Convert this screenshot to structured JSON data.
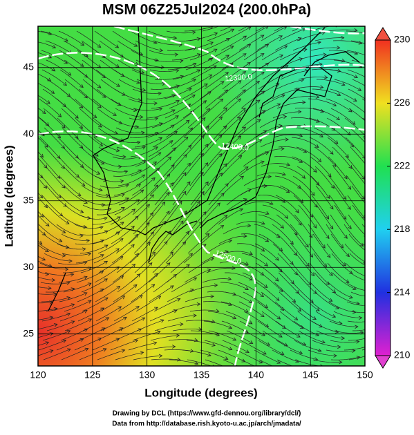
{
  "title": "MSM 06Z25Jul2024 (200.0hPa)",
  "x_axis": {
    "label": "Longitude (degrees)",
    "lim": [
      120,
      150
    ],
    "ticks": [
      120,
      125,
      130,
      135,
      140,
      145,
      150
    ]
  },
  "y_axis": {
    "label": "Latitude  (degrees)",
    "lim": [
      22.6,
      48.1
    ],
    "ticks": [
      25,
      30,
      35,
      40,
      45
    ]
  },
  "colorbar": {
    "lim": [
      210,
      230
    ],
    "ticks": [
      210,
      214,
      218,
      222,
      226,
      230
    ]
  },
  "contour_labels": [
    "12300.0",
    "12400.0",
    "12500.0"
  ],
  "credits": [
    "Drawing by DCL (https://www.gfd-dennou.org/library/dcl/)",
    "Data from http://database.rish.kyoto-u.ac.jp/arch/jmadata/"
  ]
}
